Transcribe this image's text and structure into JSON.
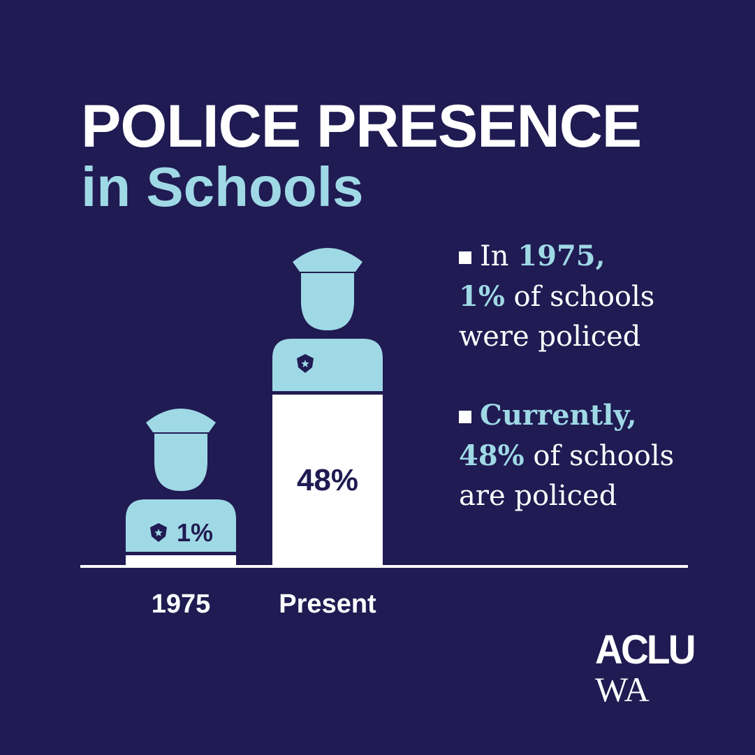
{
  "title": {
    "line1": "POLICE PRESENCE",
    "line2": "in Schools"
  },
  "notes": [
    {
      "pre": "In ",
      "hl1": "1975,",
      "hl2": "1%",
      "post1": " of schools",
      "line3": "were policed"
    },
    {
      "pre": "",
      "hl1": "Currently,",
      "hl2": " 48%",
      "post1": " of schools",
      "line3": "are policed"
    }
  ],
  "chart_data": {
    "type": "bar",
    "categories": [
      "1975",
      "Present"
    ],
    "values": [
      1,
      48
    ],
    "value_labels": [
      "1%",
      "48%"
    ],
    "unit": "%",
    "ylim": [
      0,
      48
    ],
    "grid": false,
    "legend": "none"
  },
  "logo": {
    "top": "ACLU",
    "bottom": "WA"
  },
  "colors": {
    "background": "#201b52",
    "accent": "#9fd9e6",
    "text": "#ffffff"
  },
  "icons": [
    "police-officer-icon",
    "police-badge-icon"
  ]
}
